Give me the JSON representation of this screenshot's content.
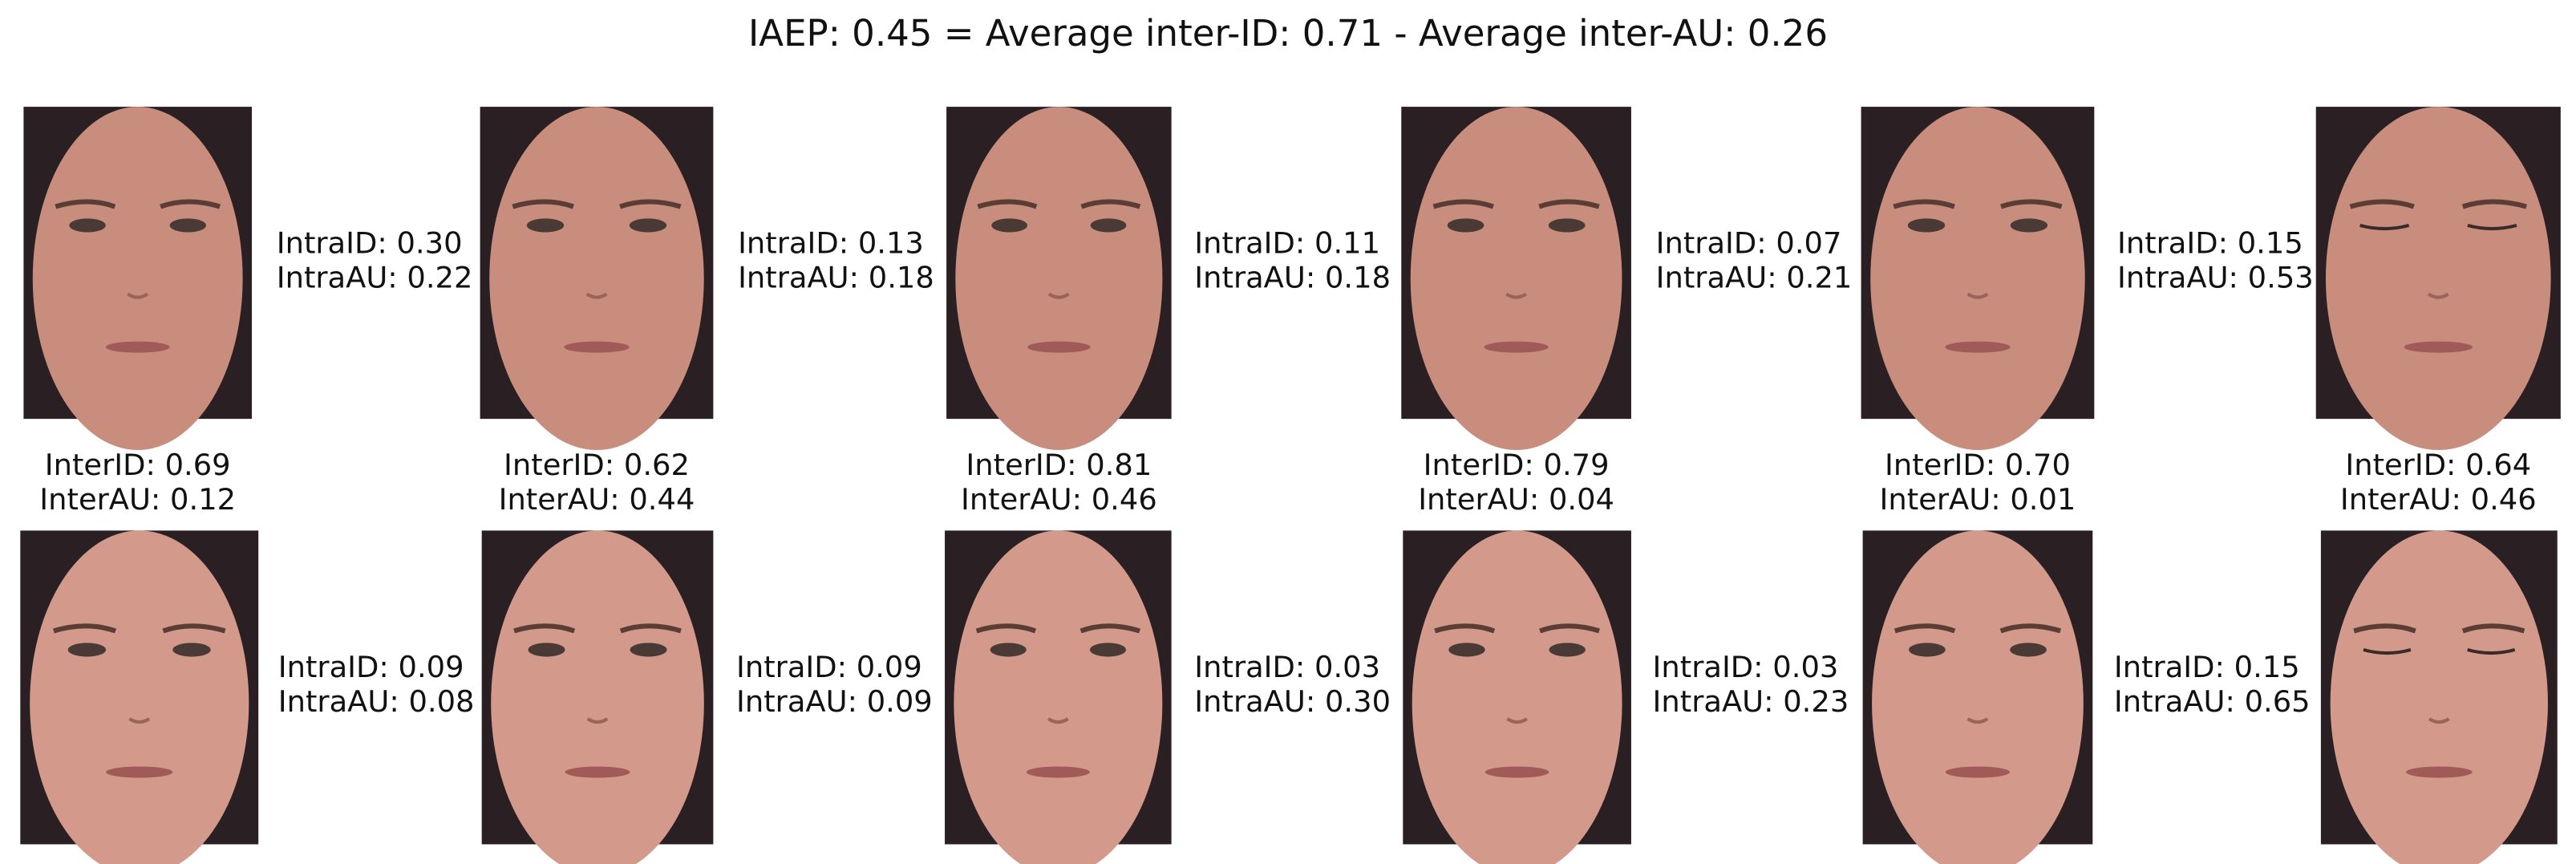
{
  "title": "IAEP: 0.45 = Average inter-ID: 0.71 - Average inter-AU: 0.26",
  "rows": [
    {
      "intra": [
        {
          "id": "IntraID: 0.30",
          "au": "IntraAU: 0.22"
        },
        {
          "id": "IntraID: 0.13",
          "au": "IntraAU: 0.18"
        },
        {
          "id": "IntraID: 0.11",
          "au": "IntraAU: 0.18"
        },
        {
          "id": "IntraID: 0.07",
          "au": "IntraAU: 0.21"
        },
        {
          "id": "IntraID: 0.15",
          "au": "IntraAU: 0.53"
        }
      ]
    },
    {
      "intra": [
        {
          "id": "IntraID: 0.09",
          "au": "IntraAU: 0.08"
        },
        {
          "id": "IntraID: 0.09",
          "au": "IntraAU: 0.09"
        },
        {
          "id": "IntraID: 0.03",
          "au": "IntraAU: 0.30"
        },
        {
          "id": "IntraID: 0.03",
          "au": "IntraAU: 0.23"
        },
        {
          "id": "IntraID: 0.15",
          "au": "IntraAU: 0.65"
        }
      ]
    }
  ],
  "inter": [
    {
      "id": "InterID: 0.69",
      "au": "InterAU: 0.12"
    },
    {
      "id": "InterID: 0.62",
      "au": "InterAU: 0.44"
    },
    {
      "id": "InterID: 0.81",
      "au": "InterAU: 0.46"
    },
    {
      "id": "InterID: 0.79",
      "au": "InterAU: 0.04"
    },
    {
      "id": "InterID: 0.70",
      "au": "InterAU: 0.01"
    },
    {
      "id": "InterID: 0.64",
      "au": "InterAU: 0.46"
    }
  ]
}
